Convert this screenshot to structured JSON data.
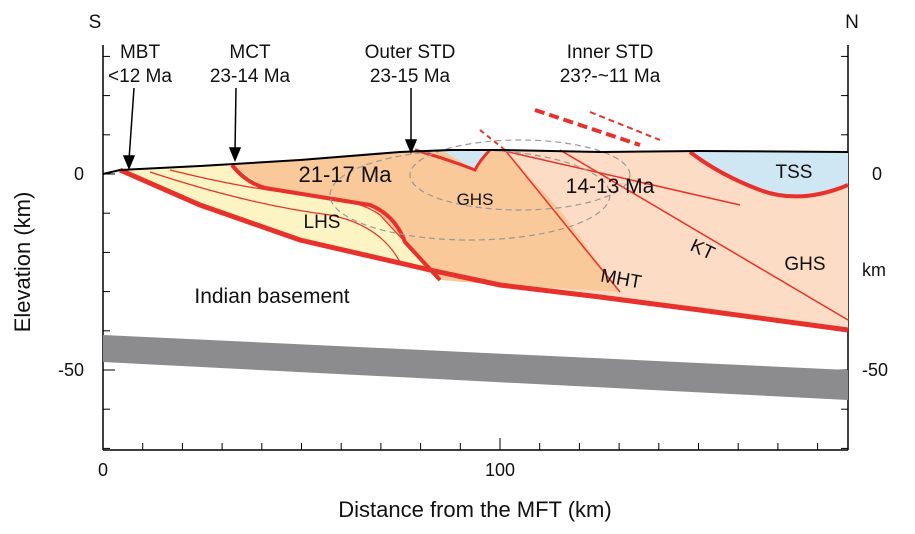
{
  "directions": {
    "south": "S",
    "north": "N"
  },
  "faults": [
    {
      "name": "MBT",
      "age": "<12 Ma"
    },
    {
      "name": "MCT",
      "age": "23-14 Ma"
    },
    {
      "name": "Outer STD",
      "age": "23-15 Ma"
    },
    {
      "name": "Inner STD",
      "age": "23?-~11 Ma"
    }
  ],
  "units": {
    "lhs": "LHS",
    "ghs_center": "GHS",
    "ghs_right": "GHS",
    "tss": "TSS",
    "age_left": "21-17 Ma",
    "age_right": "14-13 Ma",
    "kt": "KT",
    "mht": "MHT",
    "basement": "Indian basement"
  },
  "axes": {
    "x_label": "Distance from the MFT (km)",
    "y_label": "Elevation (km)",
    "right_unit": "km",
    "x_ticks": [
      "0",
      "100"
    ],
    "y_ticks_left": [
      "0",
      "-50"
    ],
    "y_ticks_right": [
      "0",
      "-50"
    ]
  }
}
